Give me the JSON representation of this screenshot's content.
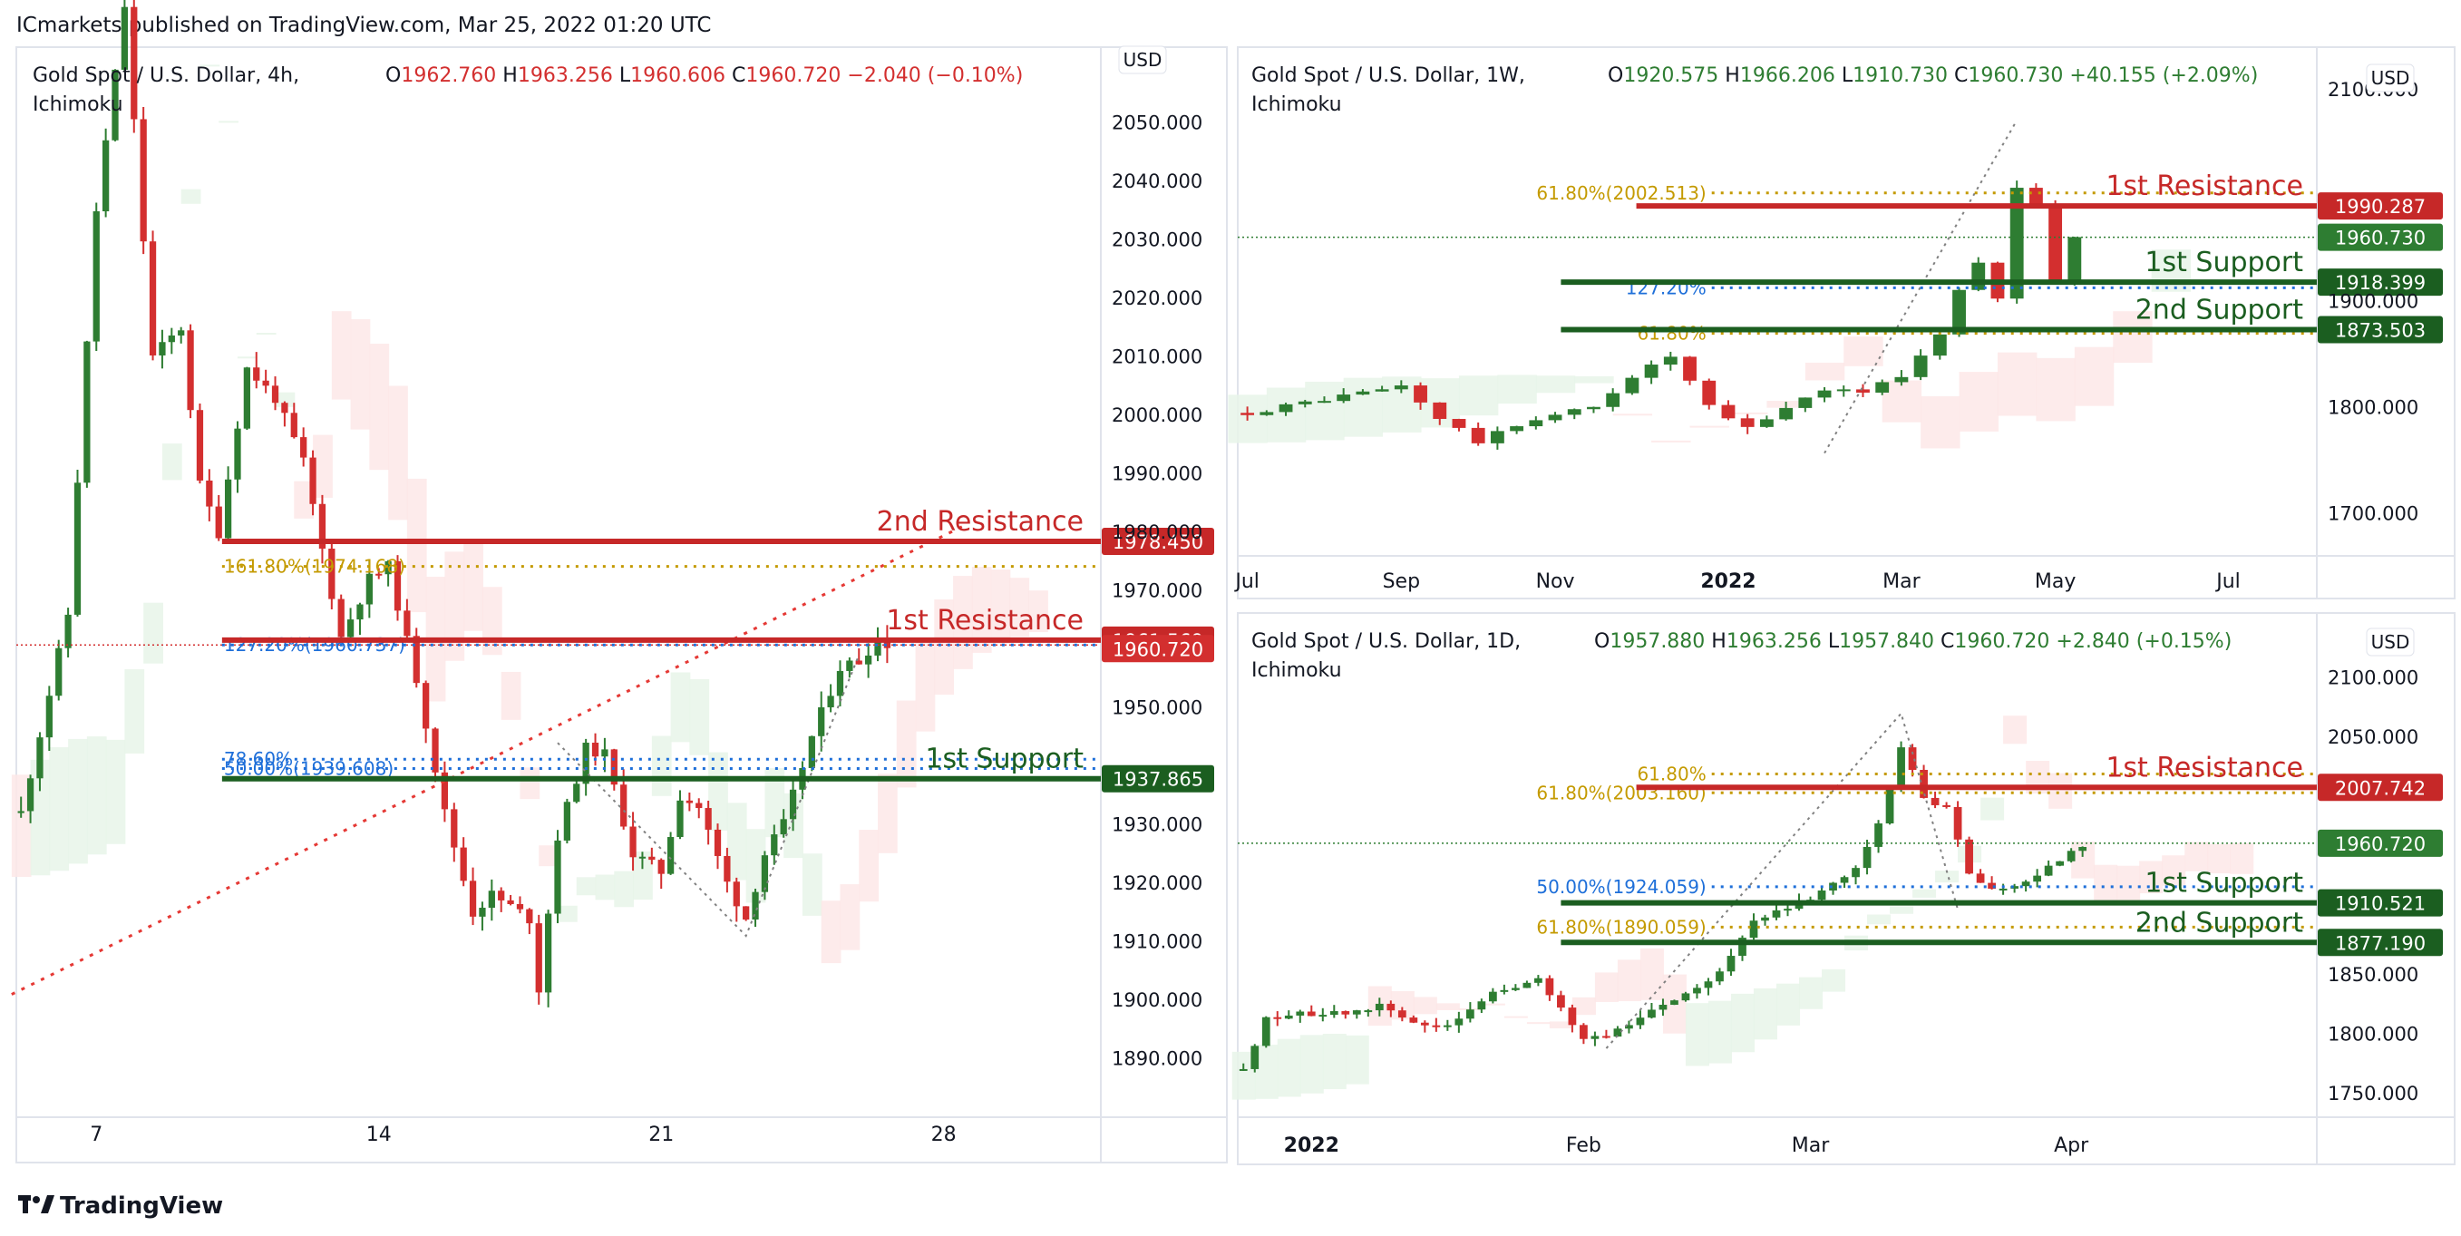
{
  "header": {
    "publisher": "ICmarkets published on TradingView.com, Mar 25, 2022 01:20 UTC"
  },
  "footer": {
    "brand": "TradingView",
    "logo_icon": "tradingview-logo-icon"
  },
  "colors": {
    "bull": "#2e7d32",
    "bear": "#d32f2f",
    "resistance": "#c62828",
    "support": "#1b5e20",
    "fib_gold": "#c49a00",
    "fib_blue": "#1e6fd9",
    "cloud_green": "#e8f5e9",
    "cloud_red": "#fde8e8",
    "pivot": "#808080"
  },
  "panels": [
    {
      "id": "4h",
      "legend": {
        "symbol": "Gold Spot / U.S. Dollar, 4h,",
        "indicator": "Ichimoku",
        "o_label": "O",
        "o": "1962.760",
        "h_label": "H",
        "h": "1963.256",
        "l_label": "L",
        "l": "1960.606",
        "c_label": "C",
        "c": "1960.720",
        "change": "−2.040 (−0.10%)",
        "change_dir": "down"
      },
      "currency": "USD",
      "ylim": [
        1880,
        2062
      ],
      "y_ticks": [
        "2050.000",
        "2040.000",
        "2030.000",
        "2020.000",
        "2010.000",
        "2000.000",
        "1990.000",
        "1980.000",
        "1970.000",
        "1950.000",
        "1930.000",
        "1920.000",
        "1910.000",
        "1900.000",
        "1890.000"
      ],
      "x_ticks": [
        "7",
        "14",
        "21",
        "28"
      ],
      "x_tick_index": [
        8,
        38,
        68,
        98
      ],
      "n_slots": 115,
      "series": {
        "kind": "candles",
        "anchors": [
          [
            0,
            1932
          ],
          [
            5,
            1966
          ],
          [
            8,
            2035
          ],
          [
            11,
            2070
          ],
          [
            14,
            2010
          ],
          [
            17,
            2015
          ],
          [
            19,
            1988
          ],
          [
            21,
            1980
          ],
          [
            24,
            2008
          ],
          [
            27,
            2003
          ],
          [
            30,
            1992
          ],
          [
            34,
            1962
          ],
          [
            37,
            1972
          ],
          [
            39,
            1974
          ],
          [
            42,
            1955
          ],
          [
            45,
            1932
          ],
          [
            48,
            1915
          ],
          [
            50,
            1918
          ],
          [
            54,
            1914
          ],
          [
            55,
            1902
          ],
          [
            57,
            1928
          ],
          [
            60,
            1943
          ],
          [
            62,
            1942
          ],
          [
            65,
            1925
          ],
          [
            68,
            1922
          ],
          [
            70,
            1935
          ],
          [
            72,
            1933
          ],
          [
            75,
            1920
          ],
          [
            77,
            1914
          ],
          [
            79,
            1925
          ],
          [
            81,
            1930
          ],
          [
            84,
            1945
          ],
          [
            87,
            1957
          ],
          [
            89,
            1958
          ],
          [
            91,
            1962
          ],
          [
            92,
            1961
          ]
        ]
      },
      "levels": [
        {
          "name": "2nd Resistance",
          "price": 1978.45,
          "label": "1978.450",
          "kind": "resistance"
        },
        {
          "name": "1st Resistance",
          "price": 1961.569,
          "label": "1961.569",
          "kind": "resistance"
        },
        {
          "name": "1st Support",
          "price": 1937.865,
          "label": "1937.865",
          "kind": "support"
        }
      ],
      "last_price": {
        "price": 1960.72,
        "label": "1960.720"
      },
      "fibs": [
        {
          "text": "161.80%(1974.168)",
          "price": 1974.168,
          "color": "gold"
        },
        {
          "text": "127.20%(1960.737)",
          "price": 1960.737,
          "color": "blue"
        },
        {
          "text": "78.60%",
          "price": 1941.2,
          "color": "blue"
        },
        {
          "text": "50.00%(1939.608)",
          "price": 1939.608,
          "color": "blue"
        }
      ],
      "trendline": {
        "from": [
          0,
          1901
        ],
        "to": [
          100,
          1981
        ]
      },
      "pivots": [
        [
          57,
          1944
        ],
        [
          77,
          1911
        ],
        [
          89,
          1959
        ]
      ]
    },
    {
      "id": "1w",
      "legend": {
        "symbol": "Gold Spot / U.S. Dollar, 1W,",
        "indicator": "Ichimoku",
        "o_label": "O",
        "o": "1920.575",
        "h_label": "H",
        "h": "1966.206",
        "l_label": "L",
        "l": "1910.730",
        "c_label": "C",
        "c": "1960.730",
        "change": "+40.155 (+2.09%)",
        "change_dir": "up"
      },
      "currency": "USD",
      "ylim": [
        1660,
        2135
      ],
      "y_ticks": [
        "2100.000",
        "1900.000",
        "1800.000",
        "1700.000"
      ],
      "x_ticks": [
        "Jul",
        "Sep",
        "Nov",
        "2022",
        "Mar",
        "May",
        "Jul"
      ],
      "x_tick_index": [
        0,
        8,
        16,
        25,
        34,
        42,
        51
      ],
      "n_slots": 56,
      "series": {
        "kind": "candles",
        "anchors": [
          [
            0,
            1795
          ],
          [
            4,
            1808
          ],
          [
            8,
            1820
          ],
          [
            10,
            1790
          ],
          [
            12,
            1768
          ],
          [
            15,
            1790
          ],
          [
            18,
            1800
          ],
          [
            20,
            1830
          ],
          [
            22,
            1848
          ],
          [
            24,
            1800
          ],
          [
            25,
            1790
          ],
          [
            26,
            1780
          ],
          [
            28,
            1800
          ],
          [
            30,
            1818
          ],
          [
            32,
            1815
          ],
          [
            34,
            1830
          ],
          [
            36,
            1870
          ],
          [
            37,
            1910
          ],
          [
            38,
            1935
          ],
          [
            39,
            1905
          ],
          [
            40,
            2010
          ],
          [
            41,
            1995
          ],
          [
            42,
            1921
          ],
          [
            43,
            1960
          ]
        ]
      },
      "levels": [
        {
          "name": "1st Resistance",
          "price": 1990.287,
          "label": "1990.287",
          "kind": "resistance"
        },
        {
          "name": "1st Support",
          "price": 1918.399,
          "label": "1918.399",
          "kind": "support"
        },
        {
          "name": "2nd Support",
          "price": 1873.503,
          "label": "1873.503",
          "kind": "support"
        }
      ],
      "last_price": {
        "price": 1960.73,
        "label": "1960.730"
      },
      "fibs": [
        {
          "text": "61.80%(2002.513)",
          "price": 2002.513,
          "color": "gold"
        },
        {
          "text": "127.20%",
          "price": 1913,
          "color": "blue"
        },
        {
          "text": "61.80%",
          "price": 1870,
          "color": "gold"
        }
      ],
      "pivots": [
        [
          30,
          1757
        ],
        [
          40,
          2071
        ]
      ]
    },
    {
      "id": "1d",
      "legend": {
        "symbol": "Gold Spot / U.S. Dollar, 1D,",
        "indicator": "Ichimoku",
        "o_label": "O",
        "o": "1957.880",
        "h_label": "H",
        "h": "1963.256",
        "l_label": "L",
        "l": "1957.840",
        "c_label": "C",
        "c": "1960.720",
        "change": "+2.840 (+0.15%)",
        "change_dir": "up"
      },
      "currency": "USD",
      "ylim": [
        1730,
        2150
      ],
      "y_ticks": [
        "2100.000",
        "2050.000",
        "1850.000",
        "1800.000",
        "1750.000"
      ],
      "x_ticks": [
        "2022",
        "Feb",
        "Mar",
        "Apr"
      ],
      "x_tick_index": [
        6,
        30,
        50,
        73
      ],
      "n_slots": 95,
      "series": {
        "kind": "candles",
        "anchors": [
          [
            0,
            1770
          ],
          [
            2,
            1815
          ],
          [
            6,
            1817
          ],
          [
            10,
            1818
          ],
          [
            12,
            1825
          ],
          [
            15,
            1810
          ],
          [
            18,
            1805
          ],
          [
            22,
            1835
          ],
          [
            26,
            1845
          ],
          [
            30,
            1796
          ],
          [
            32,
            1800
          ],
          [
            35,
            1815
          ],
          [
            38,
            1830
          ],
          [
            42,
            1852
          ],
          [
            45,
            1898
          ],
          [
            48,
            1905
          ],
          [
            52,
            1925
          ],
          [
            54,
            1940
          ],
          [
            56,
            1975
          ],
          [
            58,
            2040
          ],
          [
            60,
            2000
          ],
          [
            62,
            1990
          ],
          [
            64,
            1935
          ],
          [
            66,
            1920
          ],
          [
            68,
            1925
          ],
          [
            70,
            1935
          ],
          [
            72,
            1945
          ],
          [
            74,
            1960
          ]
        ]
      },
      "levels": [
        {
          "name": "1st Resistance",
          "price": 2007.742,
          "label": "2007.742",
          "kind": "resistance"
        },
        {
          "name": "1st Support",
          "price": 1910.521,
          "label": "1910.521",
          "kind": "support"
        },
        {
          "name": "2nd Support",
          "price": 1877.19,
          "label": "1877.190",
          "kind": "support"
        }
      ],
      "last_price": {
        "price": 1960.72,
        "label": "1960.720"
      },
      "fibs": [
        {
          "text": "61.80%",
          "price": 2019,
          "color": "gold"
        },
        {
          "text": "61.80%(2003.160)",
          "price": 2003.16,
          "color": "gold"
        },
        {
          "text": "50.00%(1924.059)",
          "price": 1924.059,
          "color": "blue"
        },
        {
          "text": "61.80%(1890.059)",
          "price": 1890.059,
          "color": "gold"
        }
      ],
      "pivots": [
        [
          32,
          1788
        ],
        [
          58,
          2070
        ],
        [
          63,
          1905
        ]
      ]
    }
  ],
  "chart_data": [
    {
      "type": "candlestick",
      "title": "Gold Spot / U.S. Dollar, 4h, Ichimoku",
      "ylim": [
        1880,
        2062
      ],
      "xlabel": "",
      "ylabel": "",
      "key_levels": {
        "2nd Resistance": 1978.45,
        "1st Resistance": 1961.569,
        "1st Support": 1937.865
      },
      "last": 1960.72,
      "ohlc": {
        "o": 1962.76,
        "h": 1963.256,
        "l": 1960.606,
        "c": 1960.72
      }
    },
    {
      "type": "candlestick",
      "title": "Gold Spot / U.S. Dollar, 1W, Ichimoku",
      "ylim": [
        1660,
        2135
      ],
      "xlabel": "",
      "ylabel": "",
      "key_levels": {
        "1st Resistance": 1990.287,
        "1st Support": 1918.399,
        "2nd Support": 1873.503
      },
      "last": 1960.73,
      "ohlc": {
        "o": 1920.575,
        "h": 1966.206,
        "l": 1910.73,
        "c": 1960.73
      }
    },
    {
      "type": "candlestick",
      "title": "Gold Spot / U.S. Dollar, 1D, Ichimoku",
      "ylim": [
        1730,
        2150
      ],
      "xlabel": "",
      "ylabel": "",
      "key_levels": {
        "1st Resistance": 2007.742,
        "1st Support": 1910.521,
        "2nd Support": 1877.19
      },
      "last": 1960.72,
      "ohlc": {
        "o": 1957.88,
        "h": 1963.256,
        "l": 1957.84,
        "c": 1960.72
      }
    }
  ]
}
